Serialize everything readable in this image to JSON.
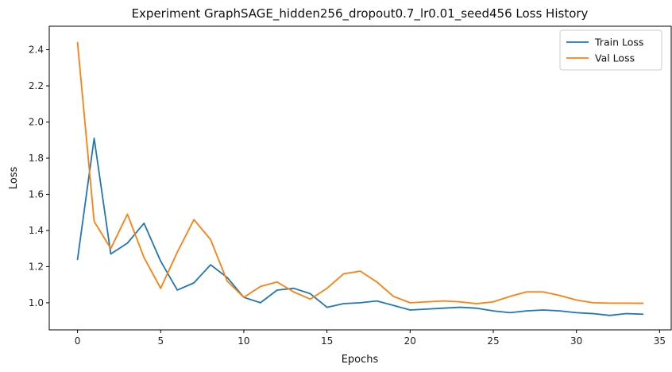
{
  "chart_data": {
    "type": "line",
    "title": "Experiment GraphSAGE_hidden256_dropout0.7_lr0.01_seed456 Loss History",
    "xlabel": "Epochs",
    "ylabel": "Loss",
    "xlim": [
      -1.7,
      35.7
    ],
    "ylim": [
      0.85,
      2.53
    ],
    "xticks": [
      0,
      5,
      10,
      15,
      20,
      25,
      30,
      35
    ],
    "xtick_labels": [
      "0",
      "5",
      "10",
      "15",
      "20",
      "25",
      "30",
      "35"
    ],
    "yticks": [
      1.0,
      1.2,
      1.4,
      1.6,
      1.8,
      2.0,
      2.2,
      2.4
    ],
    "ytick_labels": [
      "1.0",
      "1.2",
      "1.4",
      "1.6",
      "1.8",
      "2.0",
      "2.2",
      "2.4"
    ],
    "grid": false,
    "legend_position": "top-right",
    "x": [
      0,
      1,
      2,
      3,
      4,
      5,
      6,
      7,
      8,
      9,
      10,
      11,
      12,
      13,
      14,
      15,
      16,
      17,
      18,
      19,
      20,
      21,
      22,
      23,
      24,
      25,
      26,
      27,
      28,
      29,
      30,
      31,
      32,
      33,
      34
    ],
    "series": [
      {
        "name": "Train Loss",
        "color": "#1f77b4",
        "values": [
          1.24,
          1.91,
          1.27,
          1.33,
          1.44,
          1.23,
          1.07,
          1.11,
          1.21,
          1.14,
          1.03,
          1.0,
          1.07,
          1.08,
          1.05,
          0.975,
          0.995,
          1.0,
          1.01,
          0.985,
          0.96,
          0.965,
          0.97,
          0.975,
          0.97,
          0.955,
          0.945,
          0.955,
          0.96,
          0.955,
          0.945,
          0.94,
          0.93,
          0.94,
          0.937
        ]
      },
      {
        "name": "Val Loss",
        "color": "#ff7f0e",
        "values": [
          2.44,
          1.45,
          1.3,
          1.49,
          1.25,
          1.08,
          1.28,
          1.46,
          1.35,
          1.12,
          1.03,
          1.09,
          1.115,
          1.06,
          1.02,
          1.08,
          1.16,
          1.175,
          1.115,
          1.035,
          1.0,
          1.005,
          1.01,
          1.005,
          0.995,
          1.005,
          1.035,
          1.06,
          1.06,
          1.04,
          1.015,
          1.0,
          0.998,
          0.998,
          0.997
        ]
      }
    ]
  }
}
